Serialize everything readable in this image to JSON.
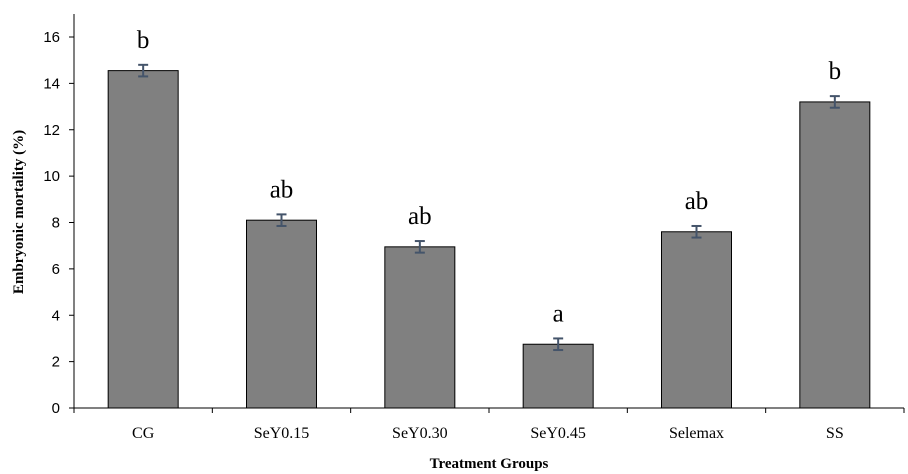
{
  "chart_data": {
    "type": "bar",
    "title": "",
    "xlabel": "Treatment Groups",
    "ylabel": "Embryonic mortality (%)",
    "ylim": [
      0,
      16
    ],
    "yticks": [
      0,
      2,
      4,
      6,
      8,
      10,
      12,
      14,
      16
    ],
    "grid": false,
    "legend": "none",
    "categories": [
      "CG",
      "SeY0.15",
      "SeY0.30",
      "SeY0.45",
      "Selemax",
      "SS"
    ],
    "values": [
      14.55,
      8.1,
      6.95,
      2.75,
      7.6,
      13.2
    ],
    "errors": [
      0.25,
      0.25,
      0.25,
      0.25,
      0.25,
      0.25
    ],
    "significance": [
      "b",
      "ab",
      "ab",
      "a",
      "ab",
      "b"
    ],
    "colors": {
      "bar_fill": "#808080",
      "bar_stroke": "#000000",
      "error_bar": "#44546A"
    }
  }
}
